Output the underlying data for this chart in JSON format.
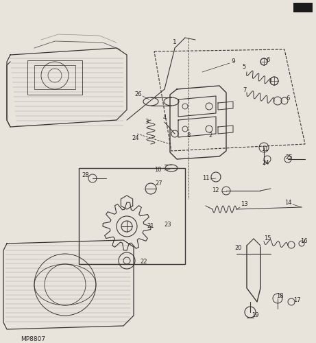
{
  "bg_color": "#e8e4dc",
  "line_color": "#3a3530",
  "label_color": "#2a2520",
  "watermark": "MP8807",
  "fig_width": 4.61,
  "fig_height": 5.0,
  "dpi": 100
}
